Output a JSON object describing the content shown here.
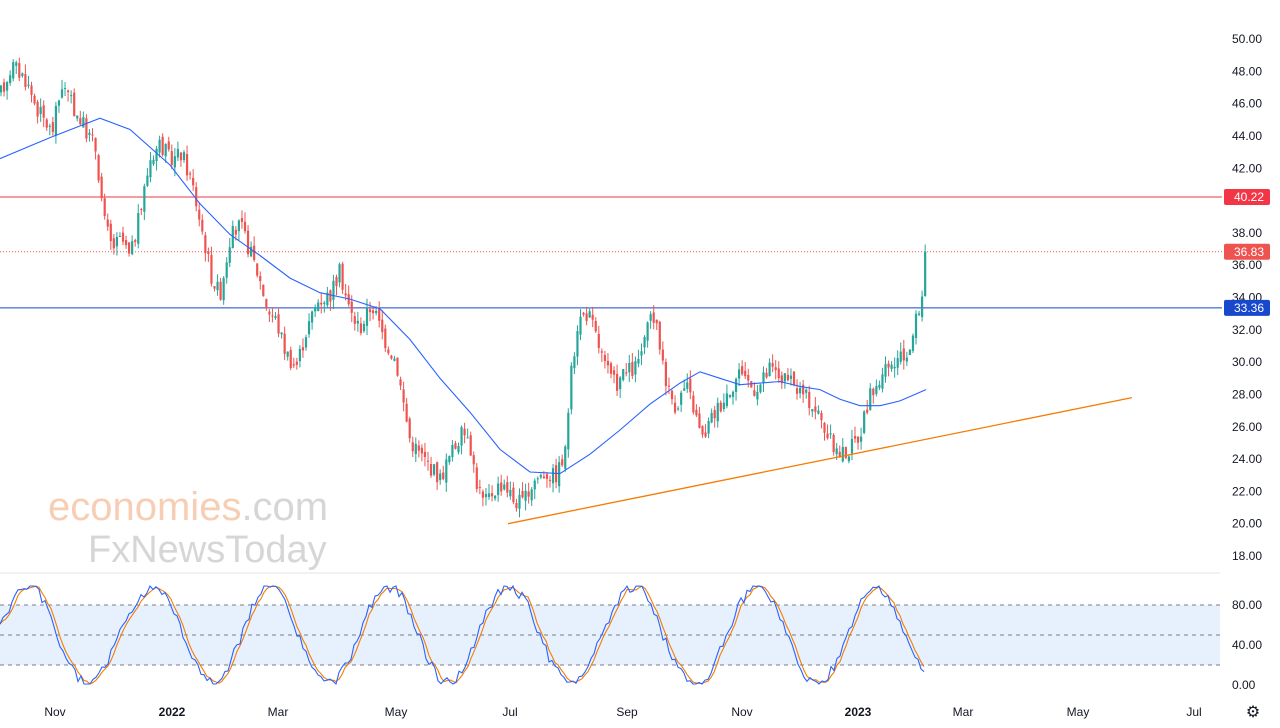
{
  "chart_data": [
    {
      "type": "candlestick",
      "x_ticks": [
        "Nov",
        "2022",
        "Mar",
        "May",
        "Jul",
        "Sep",
        "Nov",
        "2023",
        "Mar",
        "May",
        "Jul"
      ],
      "x_ticks_bold": [
        "2022",
        "2023"
      ],
      "y_ticks": [
        "50.00",
        "48.00",
        "46.00",
        "44.00",
        "42.00",
        "40.00",
        "38.00",
        "36.00",
        "34.00",
        "32.00",
        "30.00",
        "28.00",
        "26.00",
        "24.00",
        "22.00",
        "20.00",
        "18.00"
      ],
      "y_tick_values": [
        50,
        48,
        46,
        44,
        42,
        40,
        38,
        36,
        34,
        32,
        30,
        28,
        26,
        24,
        22,
        20,
        18
      ],
      "ylim": [
        17.2,
        51.0
      ],
      "up_color": "#26a69a",
      "down_color": "#ef5350",
      "ma_color": "#2962ff",
      "price_path": [
        [
          0,
          46.5
        ],
        [
          12,
          48.4
        ],
        [
          25,
          47.6
        ],
        [
          38,
          45.6
        ],
        [
          52,
          44.2
        ],
        [
          62,
          47.2
        ],
        [
          72,
          45.9
        ],
        [
          84,
          44.6
        ],
        [
          96,
          43.2
        ],
        [
          104,
          38.8
        ],
        [
          112,
          37.1
        ],
        [
          122,
          37.6
        ],
        [
          130,
          36.4
        ],
        [
          140,
          39.2
        ],
        [
          150,
          42.6
        ],
        [
          160,
          43.6
        ],
        [
          170,
          42.5
        ],
        [
          182,
          42.9
        ],
        [
          192,
          41.1
        ],
        [
          202,
          38.2
        ],
        [
          212,
          35.2
        ],
        [
          220,
          34.2
        ],
        [
          230,
          37.7
        ],
        [
          240,
          38.5
        ],
        [
          250,
          36.9
        ],
        [
          260,
          35.1
        ],
        [
          268,
          33.2
        ],
        [
          276,
          32.6
        ],
        [
          286,
          30.6
        ],
        [
          296,
          29.7
        ],
        [
          306,
          31.9
        ],
        [
          318,
          33.8
        ],
        [
          330,
          34.2
        ],
        [
          340,
          35.6
        ],
        [
          350,
          33.1
        ],
        [
          360,
          32.1
        ],
        [
          372,
          33.6
        ],
        [
          384,
          31.5
        ],
        [
          396,
          30.1
        ],
        [
          404,
          27.3
        ],
        [
          410,
          25.2
        ],
        [
          420,
          24.3
        ],
        [
          430,
          23.6
        ],
        [
          440,
          22.8
        ],
        [
          450,
          24.2
        ],
        [
          460,
          25.4
        ],
        [
          468,
          25.8
        ],
        [
          476,
          22.7
        ],
        [
          484,
          21.2
        ],
        [
          494,
          22.1
        ],
        [
          504,
          22.6
        ],
        [
          514,
          21.4
        ],
        [
          524,
          21.3
        ],
        [
          534,
          22.7
        ],
        [
          545,
          23.2
        ],
        [
          555,
          22.9
        ],
        [
          565,
          24.2
        ],
        [
          570,
          28.6
        ],
        [
          578,
          32.6
        ],
        [
          588,
          33.1
        ],
        [
          596,
          31.6
        ],
        [
          605,
          29.7
        ],
        [
          615,
          28.6
        ],
        [
          625,
          29.3
        ],
        [
          635,
          29.6
        ],
        [
          645,
          31.2
        ],
        [
          652,
          33.2
        ],
        [
          660,
          31.1
        ],
        [
          668,
          28.3
        ],
        [
          676,
          27.3
        ],
        [
          686,
          28.6
        ],
        [
          694,
          27.1
        ],
        [
          702,
          25.2
        ],
        [
          712,
          26.6
        ],
        [
          722,
          27.6
        ],
        [
          732,
          28.6
        ],
        [
          742,
          29.6
        ],
        [
          752,
          28.4
        ],
        [
          760,
          28.6
        ],
        [
          770,
          29.6
        ],
        [
          780,
          29.1
        ],
        [
          790,
          28.7
        ],
        [
          800,
          28.2
        ],
        [
          810,
          27.6
        ],
        [
          820,
          26.6
        ],
        [
          830,
          25.1
        ],
        [
          840,
          24.3
        ],
        [
          850,
          24.6
        ],
        [
          860,
          25.6
        ],
        [
          868,
          27.6
        ],
        [
          876,
          28.6
        ],
        [
          886,
          29.4
        ],
        [
          896,
          29.9
        ],
        [
          906,
          30.4
        ],
        [
          912,
          31.4
        ],
        [
          916,
          32.6
        ],
        [
          920,
          33.6
        ],
        [
          924,
          34.6
        ],
        [
          927,
          36.83
        ]
      ],
      "moving_average": [
        [
          0,
          42.6
        ],
        [
          50,
          43.9
        ],
        [
          100,
          45.1
        ],
        [
          130,
          44.4
        ],
        [
          170,
          42.2
        ],
        [
          200,
          39.8
        ],
        [
          230,
          37.9
        ],
        [
          260,
          36.6
        ],
        [
          290,
          35.2
        ],
        [
          320,
          34.3
        ],
        [
          350,
          33.9
        ],
        [
          380,
          33.3
        ],
        [
          410,
          31.4
        ],
        [
          440,
          29.0
        ],
        [
          470,
          26.9
        ],
        [
          500,
          24.6
        ],
        [
          530,
          23.2
        ],
        [
          560,
          23.1
        ],
        [
          590,
          24.3
        ],
        [
          620,
          25.8
        ],
        [
          650,
          27.4
        ],
        [
          680,
          28.7
        ],
        [
          700,
          29.4
        ],
        [
          720,
          29.0
        ],
        [
          740,
          28.6
        ],
        [
          760,
          28.7
        ],
        [
          780,
          28.8
        ],
        [
          800,
          28.5
        ],
        [
          820,
          28.3
        ],
        [
          840,
          27.7
        ],
        [
          860,
          27.3
        ],
        [
          880,
          27.3
        ],
        [
          900,
          27.6
        ],
        [
          926,
          28.3
        ]
      ],
      "price_badges": [
        {
          "label": "40.22",
          "value": 40.22,
          "color": "#f23645",
          "line": "solid"
        },
        {
          "label": "36.83",
          "value": 36.83,
          "color": "#ef5350",
          "line": "dotted"
        },
        {
          "label": "33.36",
          "value": 33.36,
          "color": "#1848cc",
          "line": "solid"
        }
      ],
      "trendline": {
        "from": [
          508,
          20.0
        ],
        "to": [
          1132,
          27.8
        ],
        "color": "#f57c00"
      }
    },
    {
      "type": "line",
      "y_ticks": [
        "80.00",
        "40.00",
        "0.00"
      ],
      "y_tick_values": [
        80,
        40,
        0
      ],
      "ylim": [
        -3,
        104
      ],
      "bands": [
        80,
        50,
        20
      ],
      "band_fill": "#e7f1fd",
      "k_color": "#2962ff",
      "d_color": "#f57c00"
    }
  ],
  "watermark": {
    "line1_main": "economies",
    "line1_suffix": ".com",
    "line2": "FxNewsToday"
  },
  "settings_icon": "gear-icon"
}
